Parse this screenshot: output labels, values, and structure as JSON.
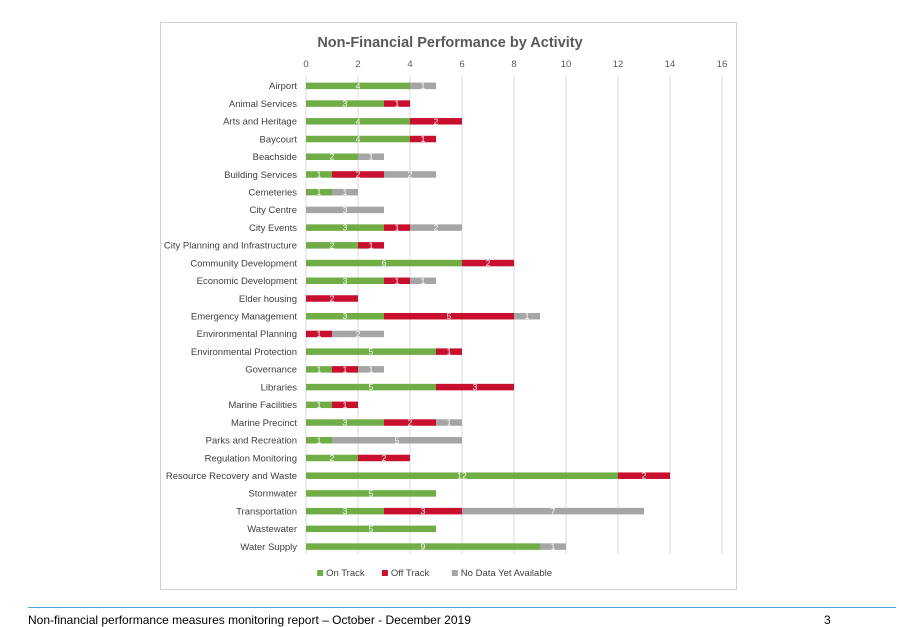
{
  "footer": {
    "text": "Non-financial performance measures monitoring report – October - December 2019",
    "page_number": "3"
  },
  "chart_data": {
    "type": "bar",
    "orientation": "horizontal",
    "stacked": true,
    "title": "Non-Financial Performance by Activity",
    "xlabel": "",
    "ylabel": "",
    "xlim": [
      0,
      16
    ],
    "xticks": [
      0,
      2,
      4,
      6,
      8,
      10,
      12,
      14,
      16
    ],
    "grid": true,
    "legend_position": "bottom",
    "categories": [
      "Airport",
      "Animal Services",
      "Arts and Heritage",
      "Baycourt",
      "Beachside",
      "Building Services",
      "Cemeteries",
      "City Centre",
      "City Events",
      "City Planning and Infrastructure",
      "Community Development",
      "Economic Development",
      "Elder housing",
      "Emergency Management",
      "Environmental Planning",
      "Environmental Protection",
      "Governance",
      "Libraries",
      "Marine Facilities",
      "Marine Precinct",
      "Parks and Recreation",
      "Regulation Monitoring",
      "Resource Recovery and Waste",
      "Stormwater",
      "Transportation",
      "Wastewater",
      "Water Supply"
    ],
    "series": [
      {
        "name": "On Track",
        "color": "#70ad47",
        "values": [
          4,
          3,
          4,
          4,
          2,
          1,
          1,
          0,
          3,
          2,
          6,
          3,
          0,
          3,
          0,
          5,
          1,
          5,
          1,
          3,
          1,
          2,
          12,
          5,
          3,
          5,
          9
        ]
      },
      {
        "name": "Off Track",
        "color": "#c8102e",
        "values": [
          0,
          1,
          2,
          1,
          0,
          2,
          0,
          0,
          1,
          1,
          2,
          1,
          2,
          5,
          1,
          1,
          1,
          3,
          1,
          2,
          0,
          2,
          2,
          0,
          3,
          0,
          0
        ]
      },
      {
        "name": "No Data Yet Available",
        "color": "#a5a5a5",
        "values": [
          1,
          0,
          0,
          0,
          1,
          2,
          1,
          3,
          2,
          0,
          0,
          1,
          0,
          1,
          2,
          0,
          1,
          0,
          0,
          1,
          5,
          0,
          0,
          0,
          7,
          0,
          1
        ]
      }
    ]
  }
}
